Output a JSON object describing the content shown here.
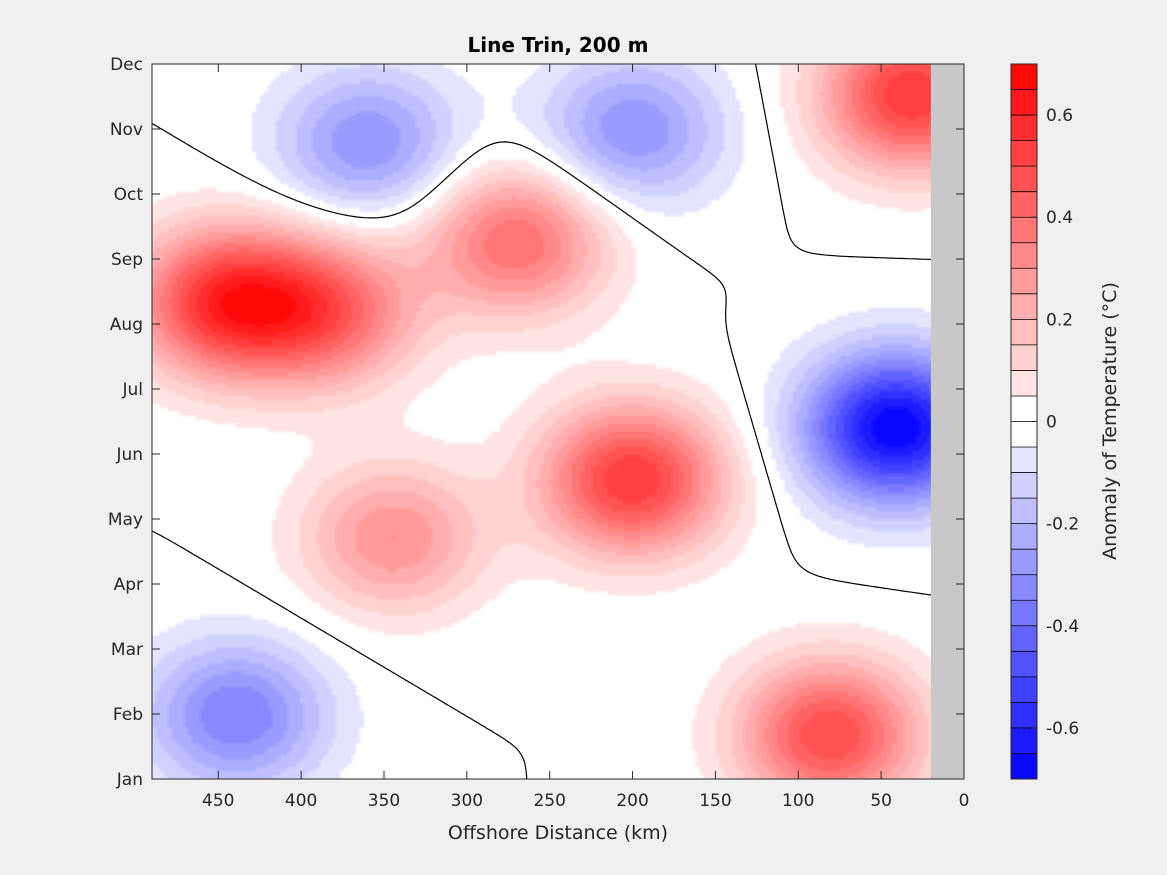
{
  "chart_data": {
    "type": "heatmap",
    "subtype": "filled-contour",
    "title": "Line Trin, 200 m",
    "xlabel": "Offshore Distance (km)",
    "ylabel": "",
    "xlim": [
      490,
      0
    ],
    "x_reversed": true,
    "x_ticks": [
      450,
      400,
      350,
      300,
      250,
      200,
      150,
      100,
      50,
      0
    ],
    "y_categories": [
      "Jan",
      "Feb",
      "Mar",
      "Apr",
      "May",
      "Jun",
      "Jul",
      "Aug",
      "Sep",
      "Oct",
      "Nov",
      "Dec"
    ],
    "colorbar": {
      "label": "Anomaly of Temperature (°C)",
      "range": [
        -0.7,
        0.7
      ],
      "ticks": [
        "0.6",
        "0.4",
        "0.2",
        "0",
        "-0.2",
        "-0.4",
        "-0.6"
      ],
      "tick_values": [
        0.6,
        0.4,
        0.2,
        0,
        -0.2,
        -0.4,
        -0.6
      ],
      "levels": 28,
      "low_color": "#0000ff",
      "mid_color": "#ffffff",
      "high_color": "#ff0000"
    },
    "grid": false,
    "no_data_region_km": [
      0,
      20
    ],
    "no_data_color": "#c8c8c8",
    "zero_contour": true,
    "features": [
      {
        "x": 447,
        "month": 7.35,
        "value": 0.55
      },
      {
        "x": 385,
        "month": 7.2,
        "value": 0.4
      },
      {
        "x": 270,
        "month": 8.3,
        "value": 0.4
      },
      {
        "x": 200,
        "month": 4.6,
        "value": 0.55
      },
      {
        "x": 80,
        "month": 0.65,
        "value": 0.5
      },
      {
        "x": 30,
        "month": 10.55,
        "value": 0.55
      },
      {
        "x": 345,
        "month": 3.7,
        "value": 0.3
      },
      {
        "x": 360,
        "month": 9.8,
        "value": -0.3
      },
      {
        "x": 200,
        "month": 10.0,
        "value": -0.3
      },
      {
        "x": 40,
        "month": 5.4,
        "value": -0.7
      },
      {
        "x": 440,
        "month": 0.95,
        "value": -0.35
      }
    ]
  }
}
